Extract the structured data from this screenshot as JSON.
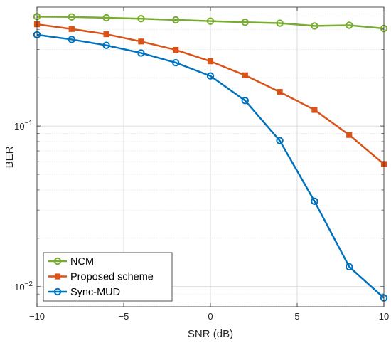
{
  "chart_data": {
    "type": "line",
    "xlabel": "SNR (dB)",
    "ylabel": "BER",
    "xlim": [
      -10,
      10
    ],
    "ylim": [
      0.0075,
      0.55
    ],
    "yscale": "log",
    "grid": true,
    "legend_position": "bottom-left",
    "x_ticks": [
      -10,
      -5,
      0,
      5,
      10
    ],
    "x_tick_labels": [
      "−10",
      "−5",
      "0",
      "5",
      "10"
    ],
    "y_ticks": [
      0.1,
      0.01
    ],
    "y_tick_labels": [
      {
        "base": "10",
        "exp": "−1"
      },
      {
        "base": "10",
        "exp": "−2"
      }
    ],
    "x": [
      -10,
      -8,
      -6,
      -4,
      -2,
      0,
      2,
      4,
      6,
      8,
      10
    ],
    "series": [
      {
        "name": "NCM",
        "color": "#77ac30",
        "marker": "circle",
        "values": [
          0.48,
          0.478,
          0.472,
          0.466,
          0.458,
          0.45,
          0.443,
          0.437,
          0.42,
          0.424,
          0.405
        ]
      },
      {
        "name": "Proposed scheme",
        "color": "#d95319",
        "marker": "square",
        "values": [
          0.43,
          0.402,
          0.373,
          0.336,
          0.298,
          0.253,
          0.207,
          0.163,
          0.126,
          0.088,
          0.058
        ]
      },
      {
        "name": "Sync-MUD",
        "color": "#0072bd",
        "marker": "circle",
        "values": [
          0.37,
          0.346,
          0.318,
          0.285,
          0.248,
          0.205,
          0.144,
          0.081,
          0.034,
          0.0133,
          0.0085
        ]
      }
    ]
  }
}
